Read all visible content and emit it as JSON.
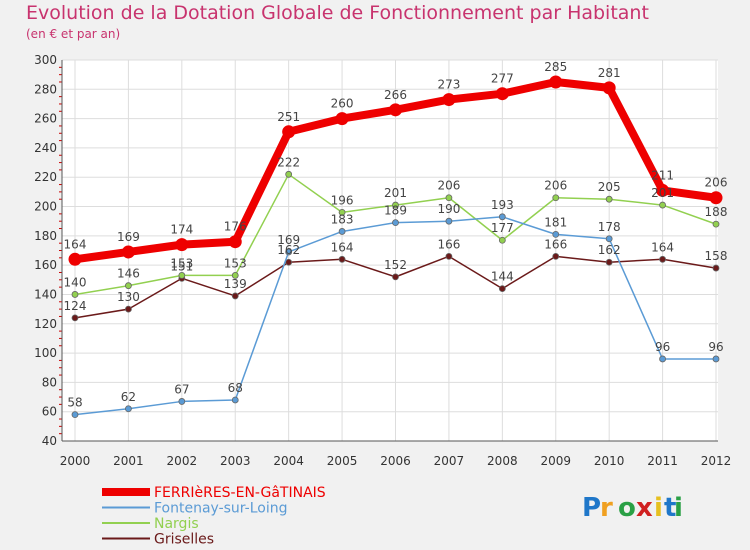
{
  "header": {
    "title": "Evolution de la Dotation Globale de Fonctionnement par Habitant",
    "subtitle": "(en € et par an)"
  },
  "logo": {
    "text": "Proxiti"
  },
  "chart_data": {
    "type": "line",
    "title": "Evolution de la Dotation Globale de Fonctionnement par Habitant",
    "subtitle": "(en € et par an)",
    "xlabel": "",
    "ylabel": "",
    "categories": [
      "2000",
      "2001",
      "2002",
      "2003",
      "2004",
      "2005",
      "2006",
      "2007",
      "2008",
      "2009",
      "2010",
      "2011",
      "2012"
    ],
    "ylim": [
      40,
      300
    ],
    "yticks": [
      40,
      60,
      80,
      100,
      120,
      140,
      160,
      180,
      200,
      220,
      240,
      260,
      280,
      300
    ],
    "grid": true,
    "legend_position": "bottom-left",
    "series": [
      {
        "name": "FERRIèRES-EN-GâTINAIS",
        "color": "#ee0000",
        "values": [
          164,
          169,
          174,
          176,
          251,
          260,
          266,
          273,
          277,
          285,
          281,
          211,
          206
        ],
        "labels": [
          "164",
          "169",
          "174",
          "176",
          "251",
          "260",
          "266",
          "273",
          "277",
          "285",
          "281",
          "211",
          "206"
        ]
      },
      {
        "name": "Fontenay-sur-Loing",
        "color": "#5b9bd5",
        "values": [
          58,
          62,
          67,
          68,
          169,
          183,
          189,
          190,
          193,
          181,
          178,
          96,
          96
        ],
        "labels": [
          "58",
          "62",
          "67",
          "68",
          "169",
          "183",
          "189",
          "190",
          "193",
          "181",
          "178",
          "96",
          "96"
        ]
      },
      {
        "name": "Nargis",
        "color": "#92d050",
        "values": [
          140,
          146,
          153,
          153,
          222,
          196,
          201,
          206,
          177,
          206,
          205,
          201,
          188
        ],
        "labels": [
          "140",
          "146",
          "153",
          "153",
          "222",
          "196",
          "201",
          "206",
          "177",
          "206",
          "205",
          "201",
          "188"
        ]
      },
      {
        "name": "Griselles",
        "color": "#6b1a1a",
        "values": [
          124,
          130,
          151,
          139,
          162,
          164,
          152,
          166,
          144,
          166,
          162,
          164,
          158
        ],
        "labels": [
          "124",
          "130",
          "151",
          "139",
          "162",
          "164",
          "152",
          "166",
          "144",
          "166",
          "162",
          "164",
          "158"
        ]
      }
    ]
  }
}
